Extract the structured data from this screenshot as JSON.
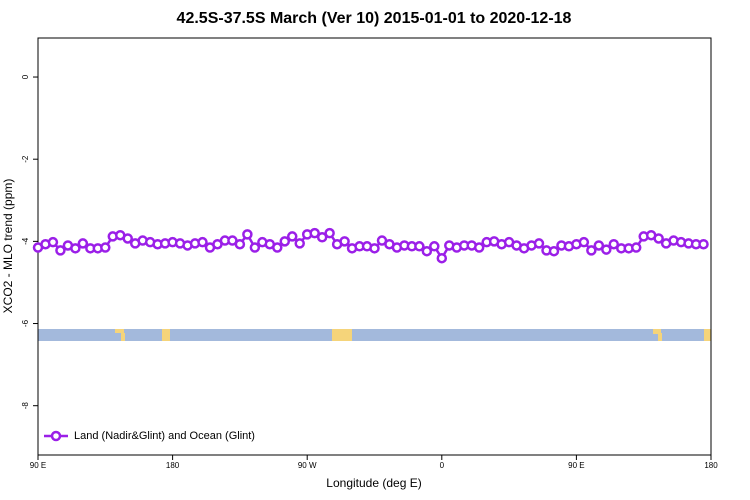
{
  "chart_data": {
    "type": "line",
    "title": "42.5S-37.5S March (Ver 10)   2015-01-01 to 2020-12-18",
    "x_label": "Longitude (deg E)",
    "y_label": "XCO2 - MLO trend (ppm)",
    "x": [
      90,
      95,
      100,
      105,
      110,
      115,
      120,
      125,
      130,
      135,
      140,
      145,
      150,
      155,
      160,
      165,
      170,
      175,
      180,
      185,
      190,
      195,
      200,
      205,
      210,
      215,
      220,
      225,
      230,
      235,
      240,
      245,
      250,
      255,
      260,
      265,
      270,
      275,
      280,
      285,
      290,
      295,
      300,
      305,
      310,
      315,
      320,
      325,
      330,
      335,
      340,
      345,
      350,
      355,
      360,
      365,
      370,
      375,
      380,
      385,
      390,
      395,
      400,
      405,
      410,
      415,
      420,
      425,
      430,
      435,
      440,
      445,
      450,
      455,
      460,
      465,
      470,
      475,
      480,
      485,
      490,
      495,
      500,
      505,
      510,
      515,
      520,
      525,
      530,
      535
    ],
    "series": [
      {
        "name": "Land (Nadir&Glint) and Ocean (Glint)",
        "color": "#9b1fe8",
        "values": [
          -4.15,
          -4.07,
          -4.02,
          -4.22,
          -4.1,
          -4.17,
          -4.05,
          -4.17,
          -4.17,
          -4.15,
          -3.88,
          -3.85,
          -3.93,
          -4.05,
          -3.98,
          -4.02,
          -4.07,
          -4.05,
          -4.02,
          -4.05,
          -4.1,
          -4.05,
          -4.02,
          -4.15,
          -4.07,
          -3.98,
          -3.98,
          -4.07,
          -3.83,
          -4.15,
          -4.02,
          -4.07,
          -4.15,
          -4.0,
          -3.88,
          -4.05,
          -3.83,
          -3.8,
          -3.9,
          -3.8,
          -4.07,
          -4.0,
          -4.17,
          -4.12,
          -4.12,
          -4.17,
          -3.98,
          -4.07,
          -4.15,
          -4.1,
          -4.12,
          -4.12,
          -4.24,
          -4.12,
          -4.41,
          -4.1,
          -4.15,
          -4.1,
          -4.1,
          -4.15,
          -4.02,
          -4.0,
          -4.07,
          -4.02,
          -4.1,
          -4.17,
          -4.1,
          -4.05,
          -4.22,
          -4.24,
          -4.1,
          -4.12,
          -4.07,
          -4.02,
          -4.22,
          -4.1,
          -4.2,
          -4.07,
          -4.17,
          -4.17,
          -4.15,
          -3.88,
          -3.85,
          -3.93,
          -4.05,
          -3.98,
          -4.02,
          -4.05,
          -4.07,
          -4.07
        ]
      }
    ],
    "xlim": [
      90,
      540
    ],
    "xticks": [
      {
        "value": 90,
        "label": "90 E"
      },
      180,
      {
        "value": 270,
        "label": "90 W"
      },
      {
        "value": 360,
        "label": "0"
      },
      {
        "value": 450,
        "label": "90 E"
      },
      {
        "value": 540,
        "label": "180"
      }
    ],
    "ylim": [
      -9.2,
      0.95
    ],
    "yticks": [
      0,
      -2,
      -4,
      -6,
      -8
    ],
    "legend": "bottom-left"
  }
}
